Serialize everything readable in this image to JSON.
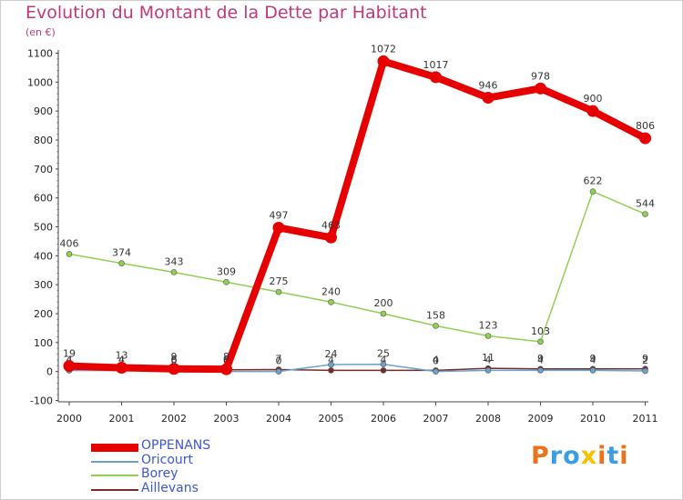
{
  "header": {
    "title": "Evolution du Montant de la Dette par Habitant",
    "unit": "(en €)"
  },
  "logo": {
    "text": "Proxiti",
    "letter_colors": [
      "#e8731a",
      "#3a9ee0",
      "#3a9ee0",
      "#f2c200",
      "#e8731a",
      "#3a9ee0",
      "#e8731a"
    ]
  },
  "chart_data": {
    "type": "line",
    "title": "Evolution du Montant de la Dette par Habitant",
    "ylabel": "(en €)",
    "xlabel": "",
    "ylim": [
      -100,
      1100
    ],
    "y_ticks": [
      -100,
      0,
      100,
      200,
      300,
      400,
      500,
      600,
      700,
      800,
      900,
      1000,
      1100
    ],
    "categories": [
      "2000",
      "2001",
      "2002",
      "2003",
      "2004",
      "2005",
      "2006",
      "2007",
      "2008",
      "2009",
      "2010",
      "2011"
    ],
    "grid": false,
    "legend_position": "bottom-left",
    "series": [
      {
        "name": "Borey",
        "color": "#8fd14f",
        "values": [
          406,
          374,
          343,
          309,
          275,
          240,
          200,
          158,
          123,
          103,
          622,
          544
        ]
      },
      {
        "name": "Aillevans",
        "color": "#7a2a2a",
        "values": [
          4,
          4,
          6,
          6,
          7,
          4,
          4,
          4,
          11,
          9,
          9,
          9
        ]
      },
      {
        "name": "Oricourt",
        "color": "#6aa3cc",
        "values": [
          4,
          4,
          0,
          0,
          0,
          24,
          25,
          0,
          4,
          4,
          4,
          2
        ]
      },
      {
        "name": "OPPENANS",
        "color": "#e60000",
        "values": [
          19,
          13,
          9,
          8,
          497,
          463,
          1072,
          1017,
          946,
          978,
          900,
          806
        ]
      }
    ],
    "legend_order": [
      "OPPENANS",
      "Oricourt",
      "Borey",
      "Aillevans"
    ]
  }
}
